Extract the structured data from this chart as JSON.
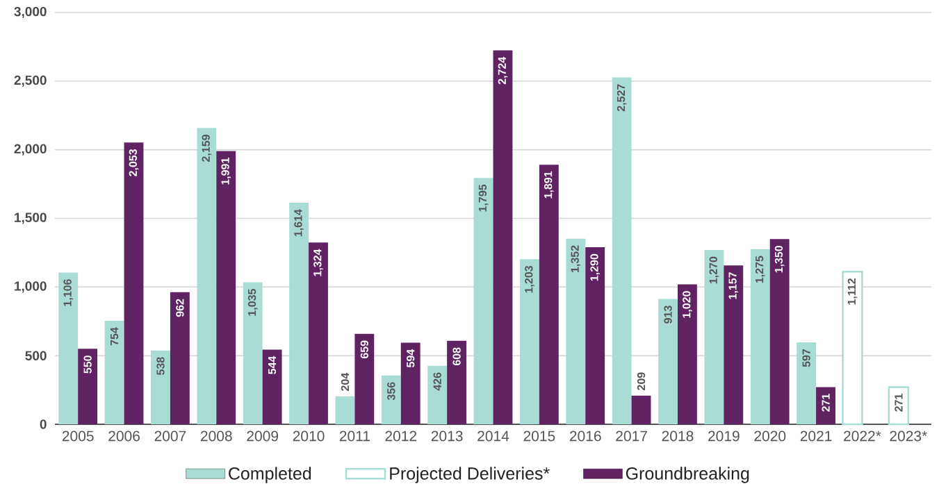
{
  "chart_data": {
    "type": "bar",
    "categories": [
      "2005",
      "2006",
      "2007",
      "2008",
      "2009",
      "2010",
      "2011",
      "2012",
      "2013",
      "2014",
      "2015",
      "2016",
      "2017",
      "2018",
      "2019",
      "2020",
      "2021",
      "2022*",
      "2023*"
    ],
    "series": [
      {
        "name": "Completed",
        "color": "#aadcd6",
        "values": [
          1106,
          754,
          538,
          2159,
          1035,
          1614,
          204,
          356,
          426,
          1795,
          1203,
          1352,
          2527,
          913,
          1270,
          1275,
          597,
          null,
          null
        ],
        "value_labels": [
          "1,106",
          "754",
          "538",
          "2,159",
          "1,035",
          "1,614",
          "204",
          "356",
          "426",
          "1,795",
          "1,203",
          "1,352",
          "2,527",
          "913",
          "1,270",
          "1,275",
          "597",
          null,
          null
        ]
      },
      {
        "name": "Projected Deliveries*",
        "color": "#aadcd6",
        "values": [
          null,
          null,
          null,
          null,
          null,
          null,
          null,
          null,
          null,
          null,
          null,
          null,
          null,
          null,
          null,
          null,
          null,
          1112,
          271
        ],
        "value_labels": [
          null,
          null,
          null,
          null,
          null,
          null,
          null,
          null,
          null,
          null,
          null,
          null,
          null,
          null,
          null,
          null,
          null,
          "1,112",
          "271"
        ]
      },
      {
        "name": "Groundbreaking",
        "color": "#5f2263",
        "values": [
          550,
          2053,
          962,
          1991,
          544,
          1324,
          659,
          594,
          608,
          2724,
          1891,
          1290,
          209,
          1020,
          1157,
          1350,
          271,
          null,
          null
        ],
        "value_labels": [
          "550",
          "2,053",
          "962",
          "1,991",
          "544",
          "1,324",
          "659",
          "594",
          "608",
          "2,724",
          "1,891",
          "1,290",
          "209",
          "1,020",
          "1,157",
          "1,350",
          "271",
          null,
          null
        ]
      }
    ],
    "ylim": [
      0,
      3000
    ],
    "yticks": [
      0,
      500,
      {
        "value": 1000,
        "label": "1,000"
      },
      {
        "value": 1500,
        "label": "1,500"
      },
      {
        "value": 2000,
        "label": "2,000"
      },
      {
        "value": 2500,
        "label": "2,500"
      },
      {
        "value": 3000,
        "label": "3,000"
      }
    ],
    "grid": "y",
    "legend": "bottom"
  }
}
